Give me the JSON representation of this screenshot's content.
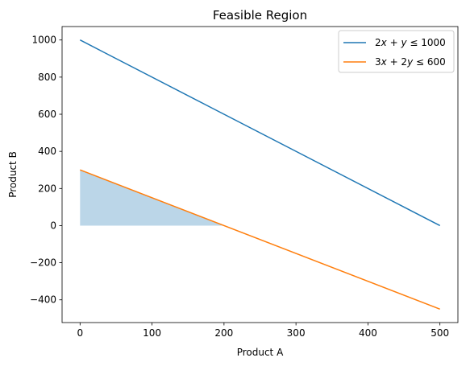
{
  "chart_data": {
    "type": "line",
    "title": "Feasible Region",
    "xlabel": "Product A",
    "ylabel": "Product B",
    "xlim": [
      -25,
      525
    ],
    "ylim": [
      -522.5,
      1072.5
    ],
    "x_ticks": [
      0,
      100,
      200,
      300,
      400,
      500
    ],
    "x_tick_labels": [
      "0",
      "100",
      "200",
      "300",
      "400",
      "500"
    ],
    "y_ticks": [
      -400,
      -200,
      0,
      200,
      400,
      600,
      800,
      1000
    ],
    "y_tick_labels": [
      "−400",
      "−200",
      "0",
      "200",
      "400",
      "600",
      "800",
      "1000"
    ],
    "grid": false,
    "legend_position": "upper-right",
    "series": [
      {
        "name": "2x + y ≤ 1000",
        "name_parts": [
          {
            "t": "2"
          },
          {
            "t": "x",
            "i": true
          },
          {
            "t": " + "
          },
          {
            "t": "y",
            "i": true
          },
          {
            "t": " ≤ 1000"
          }
        ],
        "color": "#1f77b4",
        "points": [
          [
            0,
            1000
          ],
          [
            500,
            0
          ]
        ]
      },
      {
        "name": "3x + 2y ≤ 600",
        "name_parts": [
          {
            "t": "3"
          },
          {
            "t": "x",
            "i": true
          },
          {
            "t": " + 2"
          },
          {
            "t": "y",
            "i": true
          },
          {
            "t": " ≤ 600"
          }
        ],
        "color": "#ff7f0e",
        "points": [
          [
            0,
            300
          ],
          [
            500,
            -450
          ]
        ]
      }
    ],
    "feasible_region": {
      "color": "#1f77b4",
      "opacity": 0.3,
      "polygon": [
        [
          0,
          0
        ],
        [
          0,
          300
        ],
        [
          200,
          0
        ]
      ]
    }
  }
}
